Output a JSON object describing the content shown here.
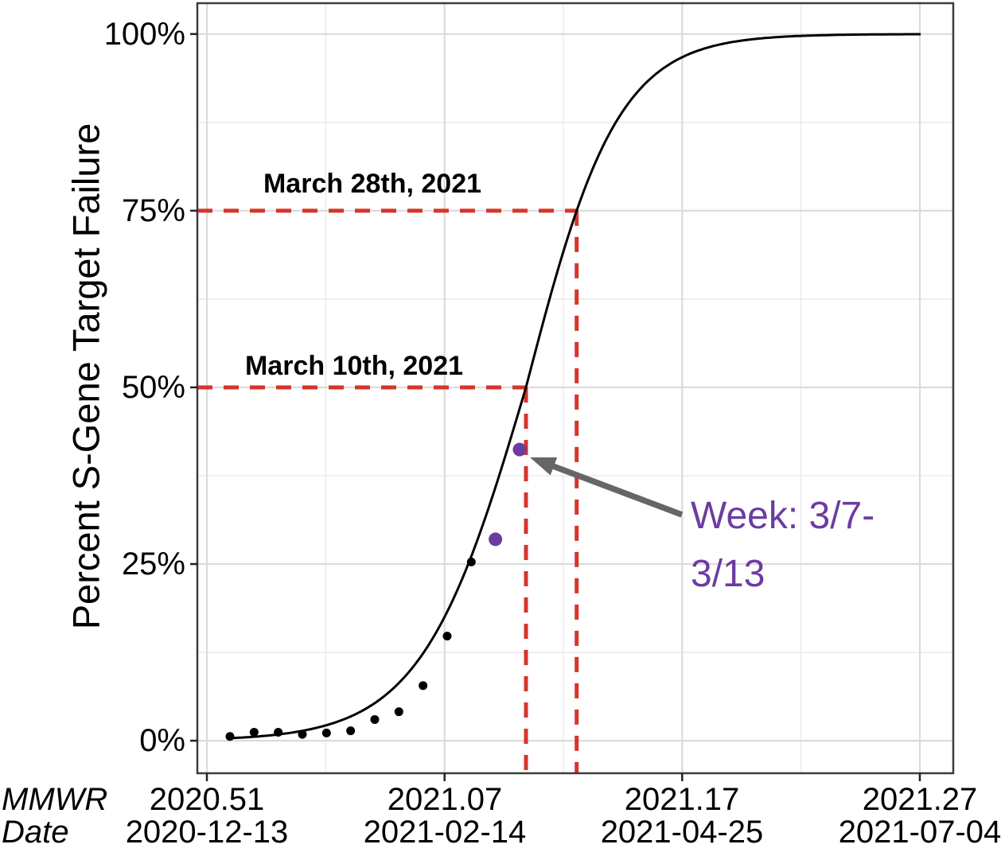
{
  "figure": {
    "y_axis_title": "Percent S-Gene Target Failure",
    "y_ticks": [
      {
        "label": "100%",
        "pct": 100
      },
      {
        "label": "75%",
        "pct": 75
      },
      {
        "label": "50%",
        "pct": 50
      },
      {
        "label": "25%",
        "pct": 25
      },
      {
        "label": "0%",
        "pct": 0
      }
    ],
    "x_axis_row1_label": "MMWR",
    "x_axis_row2_label": "Date",
    "x_ticks": [
      {
        "mmwr": "2020.51",
        "date": "2020-12-13"
      },
      {
        "mmwr": "2021.07",
        "date": "2021-02-14"
      },
      {
        "mmwr": "2021.17",
        "date": "2021-04-25"
      },
      {
        "mmwr": "2021.27",
        "date": "2021-07-04"
      }
    ]
  },
  "annotations": {
    "ref_75_label": "March 28th, 2021",
    "ref_50_label": "March 10th, 2021",
    "week_callout_line1": "Week: 3/7-",
    "week_callout_line2": "3/13",
    "week_callout_full": "Week: 3/7-3/13"
  },
  "colors": {
    "reference_red": "#D6352B",
    "highlight_purple": "#6B3CA2",
    "arrow_gray": "#666666",
    "curve_black": "#000000",
    "point_black": "#000000",
    "grid_major": "#DBDBDB",
    "grid_minor": "#ECECEC",
    "panel_border": "#3C3C3C"
  },
  "chart_data": {
    "type": "scatter",
    "title": "",
    "xlabel": "MMWR Date",
    "ylabel": "Percent S-Gene Target Failure",
    "ylim_pct": [
      0,
      100
    ],
    "grid": "major and minor, light gray on white",
    "legend": "none",
    "x_tick_labels_mmwr": [
      "2020.51",
      "2021.07",
      "2021.17",
      "2021.27"
    ],
    "x_tick_labels_date": [
      "2020-12-13",
      "2021-02-14",
      "2021-04-25",
      "2021-07-04"
    ],
    "points": [
      {
        "mmwr_week": "2020.51",
        "week_of": "2020-12-13",
        "pct": 0.6,
        "highlight": false
      },
      {
        "mmwr_week": "2020.52",
        "week_of": "2020-12-20",
        "pct": 1.2,
        "highlight": false
      },
      {
        "mmwr_week": "2020.53",
        "week_of": "2020-12-27",
        "pct": 1.2,
        "highlight": false
      },
      {
        "mmwr_week": "2021.01",
        "week_of": "2021-01-03",
        "pct": 0.9,
        "highlight": false
      },
      {
        "mmwr_week": "2021.02",
        "week_of": "2021-01-10",
        "pct": 1.1,
        "highlight": false
      },
      {
        "mmwr_week": "2021.03",
        "week_of": "2021-01-17",
        "pct": 1.4,
        "highlight": false
      },
      {
        "mmwr_week": "2021.04",
        "week_of": "2021-01-24",
        "pct": 3.0,
        "highlight": false
      },
      {
        "mmwr_week": "2021.05",
        "week_of": "2021-01-31",
        "pct": 4.1,
        "highlight": false
      },
      {
        "mmwr_week": "2021.06",
        "week_of": "2021-02-07",
        "pct": 7.8,
        "highlight": false
      },
      {
        "mmwr_week": "2021.07",
        "week_of": "2021-02-14",
        "pct": 14.8,
        "highlight": false
      },
      {
        "mmwr_week": "2021.08",
        "week_of": "2021-02-21",
        "pct": 25.3,
        "highlight": false
      },
      {
        "mmwr_week": "2021.09",
        "week_of": "2021-02-28",
        "pct": 28.5,
        "highlight": true
      },
      {
        "mmwr_week": "2021.10",
        "week_of": "2021-03-07",
        "pct": 41.2,
        "highlight": true
      }
    ],
    "fit_curve": {
      "type": "logistic-fit",
      "description": "Fitted S-shaped curve of percent S-gene target failure by MMWR week, rising from ~0% (Dec 2020) to ~100% (mid 2021)",
      "reaches_50_pct": "March 10th, 2021",
      "reaches_75_pct": "March 28th, 2021"
    },
    "reference_lines": [
      {
        "pct": 50,
        "label": "March 10th, 2021",
        "style": "red dashed, horizontal to fitted curve then vertical to x-axis"
      },
      {
        "pct": 75,
        "label": "March 28th, 2021",
        "style": "red dashed, horizontal to fitted curve then vertical to x-axis"
      }
    ],
    "callout": {
      "text": "Week: 3/7-3/13",
      "target_mmwr_week": "2021.10",
      "target_pct": 41.2
    }
  }
}
